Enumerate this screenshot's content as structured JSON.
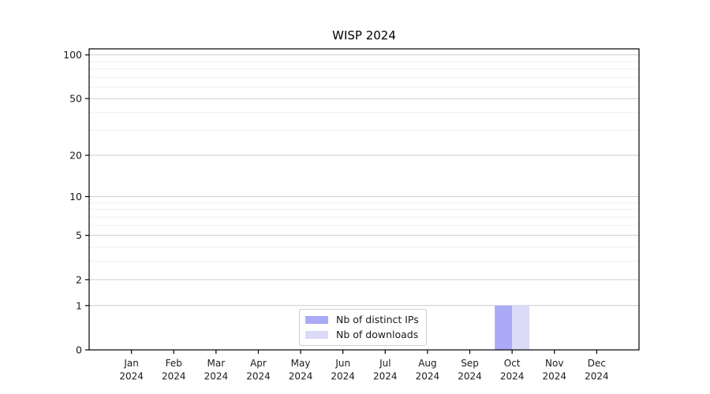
{
  "page": {
    "background": "#ffffff"
  },
  "chart_data": {
    "type": "bar",
    "title": "WISP 2024",
    "x": {
      "categories": [
        "Jan",
        "Feb",
        "Mar",
        "Apr",
        "May",
        "Jun",
        "Jul",
        "Aug",
        "Sep",
        "Oct",
        "Nov",
        "Dec"
      ],
      "year_label": "2024"
    },
    "y": {
      "scale": "symlog",
      "lim": [
        0,
        110
      ],
      "major_ticks": [
        0,
        1,
        2,
        5,
        10,
        20,
        50,
        100
      ],
      "minor_gridlines": [
        3,
        4,
        6,
        7,
        8,
        9,
        30,
        40,
        60,
        70,
        80,
        90
      ],
      "grid": true
    },
    "series": [
      {
        "name": "Nb of distinct IPs",
        "color": "#aaaaf6",
        "values": [
          0,
          0,
          0,
          0,
          0,
          0,
          0,
          0,
          0,
          1,
          0,
          0
        ]
      },
      {
        "name": "Nb of downloads",
        "color": "#dbdbf8",
        "values": [
          0,
          0,
          0,
          0,
          0,
          0,
          0,
          0,
          0,
          1,
          0,
          0
        ]
      }
    ],
    "legend": {
      "position": "bottom-center",
      "border_color": "#cccccc",
      "background": "#ffffff"
    },
    "colors": {
      "axis": "#000000",
      "major_grid": "#cdcdcd",
      "minor_grid": "#efefef",
      "tick_text": "#1a1a1a"
    }
  }
}
